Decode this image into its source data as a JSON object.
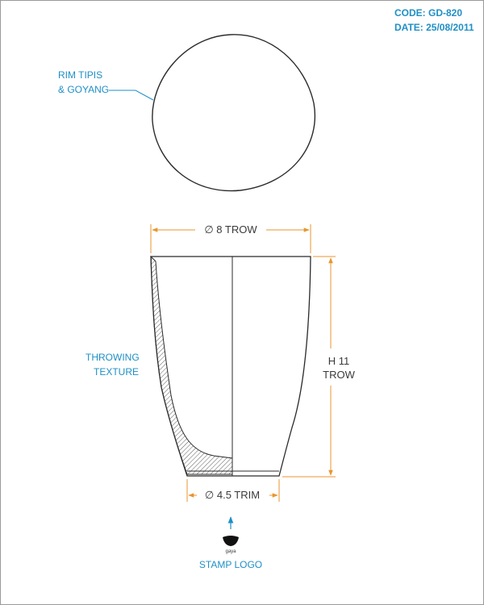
{
  "header": {
    "code": "CODE: GD-820",
    "date": "DATE: 25/08/2011"
  },
  "top_view": {
    "callout_line1": "RIM TIPIS",
    "callout_line2": "& GOYANG"
  },
  "side_view": {
    "top_dimension": "∅ 8 TROW",
    "height_line1": "H 11",
    "height_line2": "TROW",
    "bottom_dimension": "∅ 4.5 TRIM",
    "texture_line1": "THROWING",
    "texture_line2": "TEXTURE"
  },
  "stamp": {
    "logo_text": "gaya",
    "label": "STAMP LOGO"
  },
  "colors": {
    "annotation": "#1e8fc6",
    "dimension": "#e8962e",
    "outline": "#2b2b2b"
  }
}
